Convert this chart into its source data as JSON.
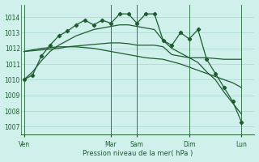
{
  "background_color": "#cff0eb",
  "grid_color": "#9ecec8",
  "line_color": "#1e5c30",
  "xlabel": "Pression niveau de la mer( hPa )",
  "ylim": [
    1006.5,
    1014.8
  ],
  "yticks": [
    1007,
    1008,
    1009,
    1010,
    1011,
    1012,
    1013,
    1014
  ],
  "xtick_labels": [
    "Ven",
    "Mar",
    "Sam",
    "Dim",
    "Lun"
  ],
  "xtick_positions": [
    0,
    10,
    13,
    19,
    25
  ],
  "vline_positions": [
    0,
    10,
    13,
    19,
    25
  ],
  "xlim": [
    -0.3,
    26.5
  ],
  "series": [
    {
      "x": [
        0,
        1,
        2,
        3,
        4,
        5,
        6,
        7,
        8,
        9,
        10,
        11,
        12,
        13,
        14,
        15,
        16,
        17,
        18,
        19,
        20,
        21,
        22,
        23,
        24,
        25
      ],
      "y": [
        1010.0,
        1010.3,
        1011.5,
        1012.2,
        1012.8,
        1013.1,
        1013.5,
        1013.8,
        1013.5,
        1013.8,
        1013.6,
        1014.2,
        1014.2,
        1013.6,
        1014.2,
        1014.2,
        1012.5,
        1012.2,
        1013.0,
        1012.6,
        1013.2,
        1011.3,
        1010.4,
        1009.5,
        1008.6,
        1007.3
      ],
      "marker": true
    },
    {
      "x": [
        0,
        1,
        2,
        3,
        4,
        5,
        6,
        7,
        8,
        9,
        10,
        11,
        12,
        13,
        14,
        15,
        16,
        17,
        18,
        19,
        20,
        21,
        22,
        23,
        24,
        25
      ],
      "y": [
        1011.8,
        1011.85,
        1011.9,
        1011.95,
        1012.0,
        1012.1,
        1012.15,
        1012.2,
        1012.25,
        1012.3,
        1012.35,
        1012.35,
        1012.3,
        1012.2,
        1012.2,
        1012.2,
        1012.1,
        1011.6,
        1011.5,
        1011.4,
        1011.4,
        1011.4,
        1011.35,
        1011.3,
        1011.3,
        1011.3
      ],
      "marker": false
    },
    {
      "x": [
        0,
        1,
        2,
        3,
        4,
        5,
        6,
        7,
        8,
        9,
        10,
        11,
        12,
        13,
        14,
        15,
        16,
        17,
        18,
        19,
        20,
        21,
        22,
        23,
        24,
        25
      ],
      "y": [
        1011.8,
        1011.9,
        1012.0,
        1012.05,
        1012.1,
        1012.1,
        1012.1,
        1012.05,
        1012.0,
        1011.9,
        1011.8,
        1011.7,
        1011.6,
        1011.5,
        1011.4,
        1011.35,
        1011.3,
        1011.15,
        1011.0,
        1010.8,
        1010.6,
        1010.4,
        1010.2,
        1010.0,
        1009.8,
        1009.5
      ],
      "marker": false
    },
    {
      "x": [
        0,
        1,
        2,
        3,
        4,
        5,
        6,
        7,
        8,
        9,
        10,
        11,
        12,
        13,
        14,
        15,
        16,
        17,
        18,
        19,
        20,
        21,
        22,
        23,
        24,
        25
      ],
      "y": [
        1010.0,
        1010.5,
        1011.2,
        1011.8,
        1012.2,
        1012.5,
        1012.8,
        1013.0,
        1013.2,
        1013.3,
        1013.4,
        1013.5,
        1013.5,
        1013.4,
        1013.3,
        1013.2,
        1012.5,
        1012.0,
        1011.7,
        1011.4,
        1011.1,
        1010.5,
        1010.0,
        1009.2,
        1008.5,
        1007.8
      ],
      "marker": false
    }
  ]
}
